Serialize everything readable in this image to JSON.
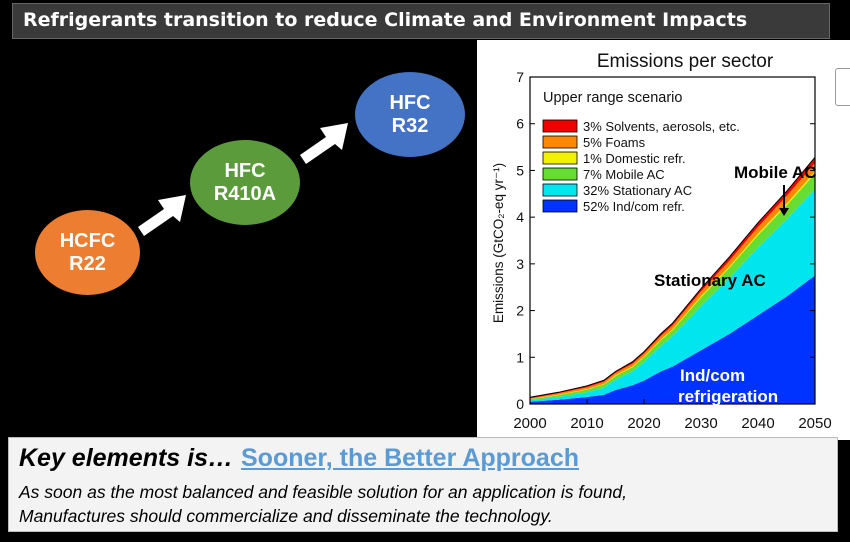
{
  "slide_title": "Refrigerants transition to reduce Climate and Environment Impacts",
  "bubbles": [
    {
      "line1": "HCFC",
      "line2": "R22",
      "color": "#ed7d31"
    },
    {
      "line1": "HFC",
      "line2": "R410A",
      "color": "#5b9b3c"
    },
    {
      "line1": "HFC",
      "line2": "R32",
      "color": "#4472c4"
    }
  ],
  "chart_data": {
    "type": "area",
    "title": "Emissions per sector",
    "subtitle": "Upper range scenario",
    "ylabel": "Emissions (GtCO₂-eq yr⁻¹)",
    "xlabel": "",
    "xlim": [
      2000,
      2050
    ],
    "ylim": [
      0,
      7
    ],
    "x_ticks": [
      "2000",
      "2010",
      "2020",
      "2030",
      "2040",
      "2050"
    ],
    "y_ticks": [
      "0",
      "1",
      "2",
      "3",
      "4",
      "5",
      "6",
      "7"
    ],
    "x": [
      2000,
      2005,
      2010,
      2013,
      2015,
      2018,
      2020,
      2023,
      2025,
      2030,
      2035,
      2040,
      2045,
      2050
    ],
    "series": [
      {
        "name": "52% Ind/com refr.",
        "color": "#0033ff",
        "values": [
          0.05,
          0.09,
          0.15,
          0.2,
          0.3,
          0.4,
          0.5,
          0.7,
          0.8,
          1.15,
          1.5,
          1.9,
          2.3,
          2.75
        ]
      },
      {
        "name": "32% Stationary AC",
        "color": "#00e5ee",
        "values": [
          0.03,
          0.06,
          0.1,
          0.15,
          0.22,
          0.3,
          0.4,
          0.55,
          0.65,
          0.95,
          1.2,
          1.45,
          1.65,
          1.85
        ]
      },
      {
        "name": "7% Mobile AC",
        "color": "#66dd33",
        "values": [
          0.02,
          0.04,
          0.06,
          0.07,
          0.08,
          0.09,
          0.1,
          0.12,
          0.13,
          0.18,
          0.22,
          0.26,
          0.3,
          0.33
        ]
      },
      {
        "name": "1% Domestic refr.",
        "color": "#f0f000",
        "values": [
          0.005,
          0.01,
          0.01,
          0.01,
          0.015,
          0.015,
          0.02,
          0.02,
          0.02,
          0.03,
          0.03,
          0.04,
          0.04,
          0.05
        ]
      },
      {
        "name": "5% Foams",
        "color": "#ff8800",
        "values": [
          0.02,
          0.03,
          0.04,
          0.05,
          0.05,
          0.06,
          0.06,
          0.07,
          0.08,
          0.1,
          0.12,
          0.14,
          0.16,
          0.18
        ]
      },
      {
        "name": "3% Solvents, aerosols, etc.",
        "color": "#ee0000",
        "values": [
          0.02,
          0.02,
          0.03,
          0.03,
          0.03,
          0.04,
          0.04,
          0.05,
          0.05,
          0.06,
          0.08,
          0.09,
          0.1,
          0.12
        ]
      }
    ],
    "annotations": {
      "mobile": "Mobile AC",
      "stationary": "Stationary AC",
      "indcom_line1": "Ind/com",
      "indcom_line2": "refrigeration"
    }
  },
  "key": {
    "heading": "Key elements is…",
    "link": "Sooner, the Better Approach",
    "line1": "As soon as the most balanced and feasible solution for an application is found,",
    "line2": "Manufactures should commercialize and disseminate the technology."
  }
}
